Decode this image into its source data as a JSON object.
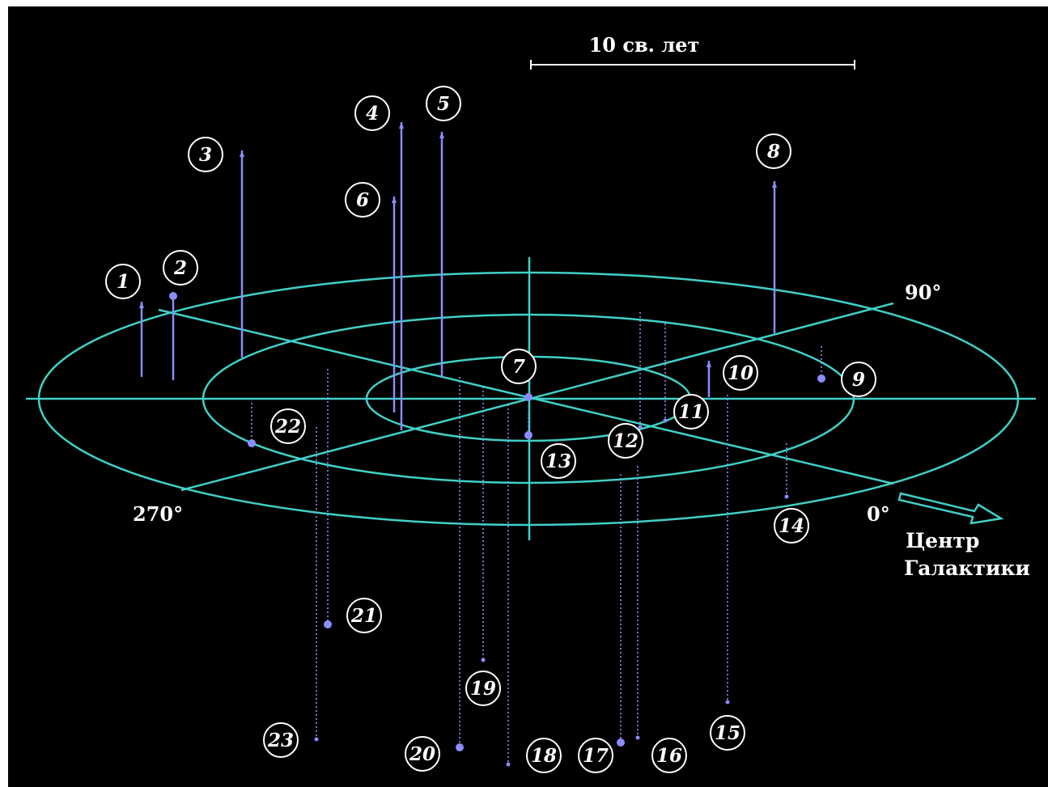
{
  "scale_label": "10 св. лет",
  "angle_labels": {
    "a0": "0°",
    "a90": "90°",
    "a270": "270°"
  },
  "center_label": {
    "line1": "Центр",
    "line2": "Галактики"
  },
  "colors": {
    "background": "#000000",
    "rings": "#40d0c8",
    "stars": "#8c8cff",
    "text": "#ffffff"
  },
  "stars": [
    {
      "n": "1",
      "kind": "up"
    },
    {
      "n": "2",
      "kind": "up"
    },
    {
      "n": "3",
      "kind": "up"
    },
    {
      "n": "4",
      "kind": "up"
    },
    {
      "n": "5",
      "kind": "up"
    },
    {
      "n": "6",
      "kind": "up"
    },
    {
      "n": "7",
      "kind": "sun"
    },
    {
      "n": "8",
      "kind": "up"
    },
    {
      "n": "9",
      "kind": "down"
    },
    {
      "n": "10",
      "kind": "up"
    },
    {
      "n": "11",
      "kind": "down"
    },
    {
      "n": "12",
      "kind": "down"
    },
    {
      "n": "13",
      "kind": "down"
    },
    {
      "n": "14",
      "kind": "down"
    },
    {
      "n": "15",
      "kind": "down"
    },
    {
      "n": "16",
      "kind": "down"
    },
    {
      "n": "17",
      "kind": "down"
    },
    {
      "n": "18",
      "kind": "down"
    },
    {
      "n": "19",
      "kind": "down"
    },
    {
      "n": "20",
      "kind": "down"
    },
    {
      "n": "21",
      "kind": "down"
    },
    {
      "n": "22",
      "kind": "down"
    },
    {
      "n": "23",
      "kind": "down"
    }
  ]
}
